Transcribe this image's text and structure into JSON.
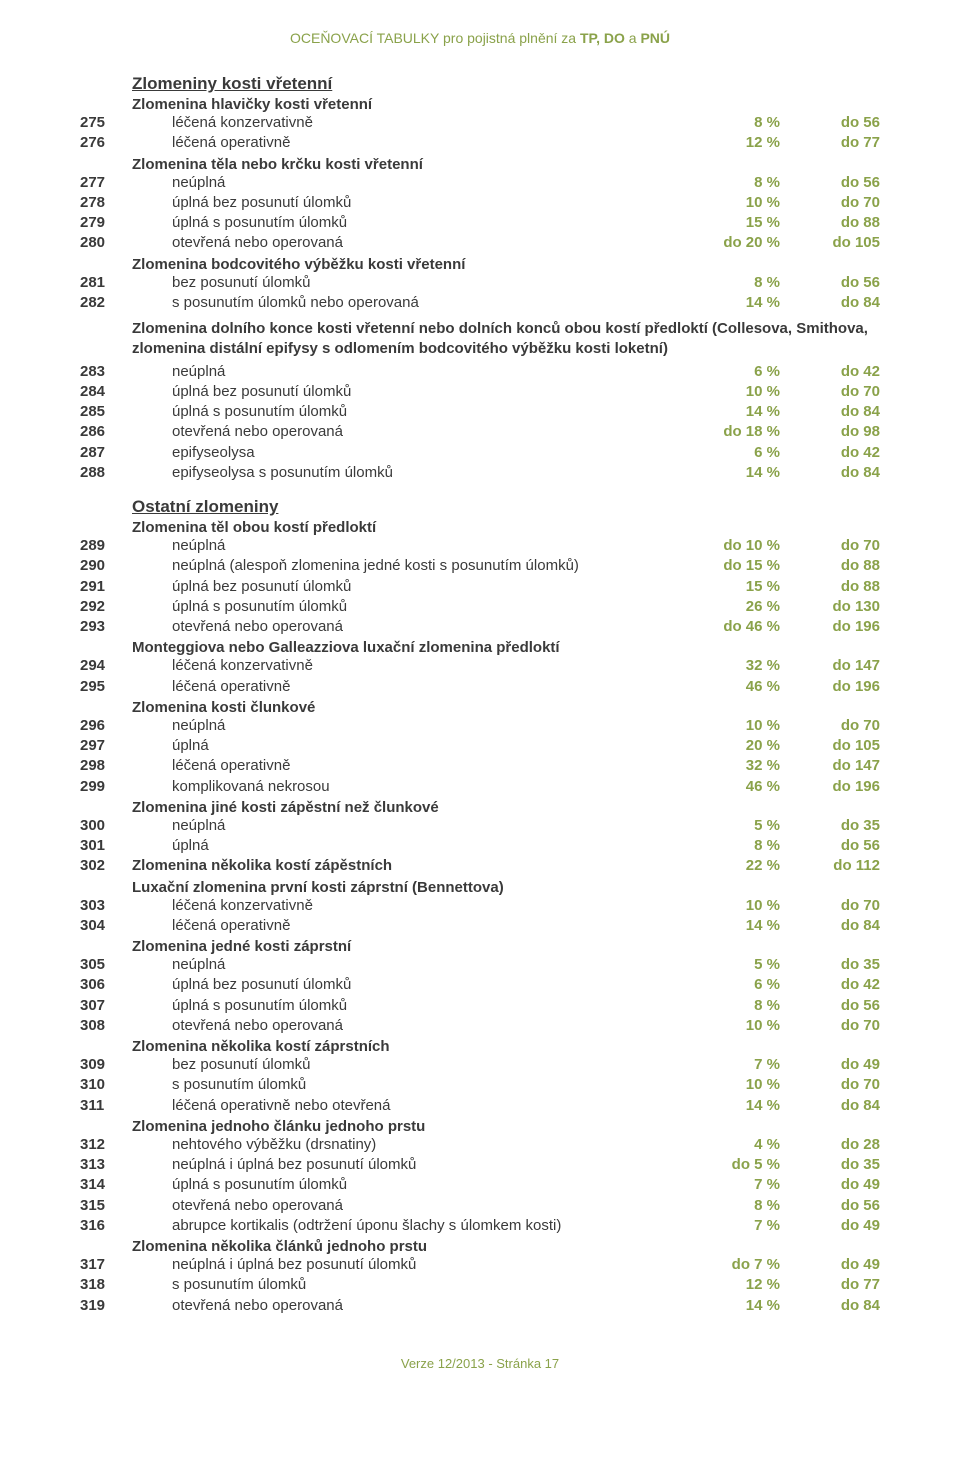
{
  "header": {
    "prefix": "OCEŇOVACÍ TABULKY pro pojistná plnění za ",
    "b1": "TP, DO",
    "mid": " a ",
    "b2": "PNÚ"
  },
  "footer": "Verze 12/2013 - Stránka 17",
  "colors": {
    "accent": "#8aa24a",
    "text": "#3a3a3a",
    "background": "#ffffff"
  },
  "sections": [
    {
      "type": "section",
      "text": "Zlomeniny kosti vřetenní"
    },
    {
      "type": "sub",
      "text": "Zlomenina hlavičky kosti vřetenní"
    },
    {
      "type": "row",
      "num": "275",
      "desc": "léčená konzervativně",
      "pct": "8 %",
      "days": "do 56",
      "indent": true
    },
    {
      "type": "row",
      "num": "276",
      "desc": "léčená operativně",
      "pct": "12 %",
      "days": "do 77",
      "indent": true
    },
    {
      "type": "sub",
      "text": "Zlomenina těla nebo krčku kosti vřetenní"
    },
    {
      "type": "row",
      "num": "277",
      "desc": "neúplná",
      "pct": "8 %",
      "days": "do 56",
      "indent": true
    },
    {
      "type": "row",
      "num": "278",
      "desc": "úplná bez posunutí úlomků",
      "pct": "10 %",
      "days": "do 70",
      "indent": true
    },
    {
      "type": "row",
      "num": "279",
      "desc": "úplná s posunutím úlomků",
      "pct": "15 %",
      "days": "do 88",
      "indent": true
    },
    {
      "type": "row",
      "num": "280",
      "desc": "otevřená nebo operovaná",
      "pct": "do 20 %",
      "days": "do 105",
      "indent": true
    },
    {
      "type": "sub",
      "text": "Zlomenina bodcovitého výběžku kosti vřetenní"
    },
    {
      "type": "row",
      "num": "281",
      "desc": "bez posunutí úlomků",
      "pct": "8 %",
      "days": "do 56",
      "indent": true
    },
    {
      "type": "row",
      "num": "282",
      "desc": "s posunutím úlomků nebo operovaná",
      "pct": "14 %",
      "days": "do 84",
      "indent": true
    },
    {
      "type": "note",
      "text": "Zlomenina dolního konce kosti vřetenní nebo dolních konců obou kostí předloktí (Collesova, Smithova, zlomenina distální epifysy s odlomením bodcovitého výběžku kosti loketní)"
    },
    {
      "type": "row",
      "num": "283",
      "desc": "neúplná",
      "pct": "6 %",
      "days": "do 42",
      "indent": true
    },
    {
      "type": "row",
      "num": "284",
      "desc": "úplná bez posunutí úlomků",
      "pct": "10 %",
      "days": "do 70",
      "indent": true
    },
    {
      "type": "row",
      "num": "285",
      "desc": "úplná s posunutím úlomků",
      "pct": "14 %",
      "days": "do 84",
      "indent": true
    },
    {
      "type": "row",
      "num": "286",
      "desc": "otevřená nebo operovaná",
      "pct": "do 18 %",
      "days": "do 98",
      "indent": true
    },
    {
      "type": "row",
      "num": "287",
      "desc": "epifyseolysa",
      "pct": "6 %",
      "days": "do 42",
      "indent": true
    },
    {
      "type": "row",
      "num": "288",
      "desc": "epifyseolysa s posunutím úlomků",
      "pct": "14 %",
      "days": "do 84",
      "indent": true
    },
    {
      "type": "section",
      "text": "Ostatní zlomeniny"
    },
    {
      "type": "sub",
      "text": "Zlomenina těl obou kostí předloktí"
    },
    {
      "type": "row",
      "num": "289",
      "desc": "neúplná",
      "pct": "do 10 %",
      "days": "do 70",
      "indent": true
    },
    {
      "type": "row",
      "num": "290",
      "desc": "neúplná (alespoň zlomenina jedné kosti s posunutím úlomků)",
      "pct": "do 15 %",
      "days": "do 88",
      "indent": true
    },
    {
      "type": "row",
      "num": "291",
      "desc": "úplná bez posunutí úlomků",
      "pct": "15 %",
      "days": "do 88",
      "indent": true
    },
    {
      "type": "row",
      "num": "292",
      "desc": "úplná s posunutím úlomků",
      "pct": "26 %",
      "days": "do 130",
      "indent": true
    },
    {
      "type": "row",
      "num": "293",
      "desc": "otevřená nebo operovaná",
      "pct": "do 46 %",
      "days": "do 196",
      "indent": true
    },
    {
      "type": "sub",
      "text": "Monteggiova nebo Galleazziova luxační zlomenina předloktí"
    },
    {
      "type": "row",
      "num": "294",
      "desc": "léčená konzervativně",
      "pct": "32 %",
      "days": "do 147",
      "indent": true
    },
    {
      "type": "row",
      "num": "295",
      "desc": "léčená operativně",
      "pct": "46 %",
      "days": "do 196",
      "indent": true
    },
    {
      "type": "sub",
      "text": "Zlomenina kosti člunkové"
    },
    {
      "type": "row",
      "num": "296",
      "desc": "neúplná",
      "pct": "10 %",
      "days": "do 70",
      "indent": true
    },
    {
      "type": "row",
      "num": "297",
      "desc": "úplná",
      "pct": "20 %",
      "days": "do 105",
      "indent": true
    },
    {
      "type": "row",
      "num": "298",
      "desc": "léčená operativně",
      "pct": "32 %",
      "days": "do 147",
      "indent": true
    },
    {
      "type": "row",
      "num": "299",
      "desc": "komplikovaná nekrosou",
      "pct": "46 %",
      "days": "do 196",
      "indent": true
    },
    {
      "type": "sub",
      "text": "Zlomenina jiné kosti zápěstní než člunkové"
    },
    {
      "type": "row",
      "num": "300",
      "desc": "neúplná",
      "pct": "5 %",
      "days": "do 35",
      "indent": true
    },
    {
      "type": "row",
      "num": "301",
      "desc": "úplná",
      "pct": "8 %",
      "days": "do 56",
      "indent": true
    },
    {
      "type": "row",
      "num": "302",
      "desc": "Zlomenina několika kostí zápěstních",
      "pct": "22 %",
      "days": "do 112",
      "indent": false,
      "descBold": true
    },
    {
      "type": "sub",
      "text": "Luxační zlomenina první kosti záprstní (Bennettova)"
    },
    {
      "type": "row",
      "num": "303",
      "desc": "léčená konzervativně",
      "pct": "10 %",
      "days": "do 70",
      "indent": true
    },
    {
      "type": "row",
      "num": "304",
      "desc": "léčená operativně",
      "pct": "14 %",
      "days": "do 84",
      "indent": true
    },
    {
      "type": "sub",
      "text": "Zlomenina jedné kosti záprstní"
    },
    {
      "type": "row",
      "num": "305",
      "desc": "neúplná",
      "pct": "5 %",
      "days": "do 35",
      "indent": true
    },
    {
      "type": "row",
      "num": "306",
      "desc": "úplná bez posunutí úlomků",
      "pct": "6 %",
      "days": "do 42",
      "indent": true
    },
    {
      "type": "row",
      "num": "307",
      "desc": "úplná s posunutím úlomků",
      "pct": "8 %",
      "days": "do 56",
      "indent": true
    },
    {
      "type": "row",
      "num": "308",
      "desc": "otevřená nebo operovaná",
      "pct": "10 %",
      "days": "do 70",
      "indent": true
    },
    {
      "type": "sub",
      "text": "Zlomenina několika kostí záprstních"
    },
    {
      "type": "row",
      "num": "309",
      "desc": "bez posunutí úlomků",
      "pct": "7 %",
      "days": "do 49",
      "indent": true
    },
    {
      "type": "row",
      "num": "310",
      "desc": "s posunutím úlomků",
      "pct": "10 %",
      "days": "do 70",
      "indent": true
    },
    {
      "type": "row",
      "num": "311",
      "desc": "léčená operativně nebo otevřená",
      "pct": "14 %",
      "days": "do 84",
      "indent": true
    },
    {
      "type": "sub",
      "text": "Zlomenina jednoho článku jednoho prstu"
    },
    {
      "type": "row",
      "num": "312",
      "desc": "nehtového výběžku (drsnatiny)",
      "pct": "4 %",
      "days": "do 28",
      "indent": true
    },
    {
      "type": "row",
      "num": "313",
      "desc": "neúplná i úplná bez posunutí úlomků",
      "pct": "do 5 %",
      "days": "do 35",
      "indent": true
    },
    {
      "type": "row",
      "num": "314",
      "desc": "úplná s posunutím úlomků",
      "pct": "7 %",
      "days": "do 49",
      "indent": true
    },
    {
      "type": "row",
      "num": "315",
      "desc": "otevřená nebo operovaná",
      "pct": "8 %",
      "days": "do 56",
      "indent": true
    },
    {
      "type": "row",
      "num": "316",
      "desc": "abrupce kortikalis (odtržení úponu šlachy s úlomkem kosti)",
      "pct": "7 %",
      "days": "do 49",
      "indent": true
    },
    {
      "type": "sub",
      "text": "Zlomenina několika článků jednoho prstu"
    },
    {
      "type": "row",
      "num": "317",
      "desc": "neúplná i úplná bez posunutí úlomků",
      "pct": "do 7 %",
      "days": "do 49",
      "indent": true
    },
    {
      "type": "row",
      "num": "318",
      "desc": "s posunutím úlomků",
      "pct": "12 %",
      "days": "do 77",
      "indent": true
    },
    {
      "type": "row",
      "num": "319",
      "desc": "otevřená nebo operovaná",
      "pct": "14 %",
      "days": "do 84",
      "indent": true
    }
  ]
}
